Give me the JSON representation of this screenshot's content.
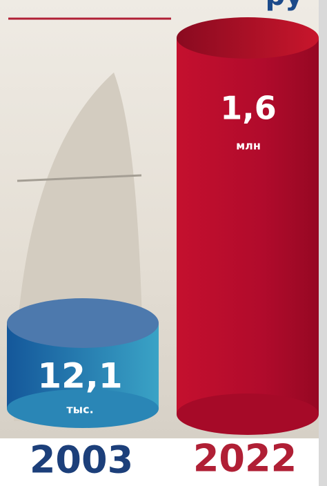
{
  "header": {
    "partial_title": "ру"
  },
  "items": [
    {
      "value": "12,1",
      "unit": "тыс.",
      "year": "2003"
    },
    {
      "value": "1,6",
      "unit": "млн",
      "year": "2022"
    }
  ]
}
